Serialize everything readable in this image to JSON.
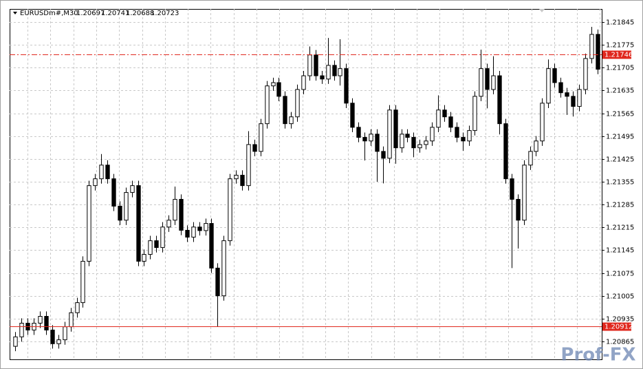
{
  "chart_data": {
    "type": "candlestick",
    "title": "EURUSDm#,M30",
    "quote": [
      1.20697,
      1.20741,
      1.20688,
      1.20723
    ],
    "ylim": [
      1.2081,
      1.21885
    ],
    "yticks": [
      1.21845,
      1.21775,
      1.21705,
      1.21635,
      1.21565,
      1.21495,
      1.21425,
      1.21355,
      1.21285,
      1.21215,
      1.21145,
      1.21075,
      1.21005,
      1.20935,
      1.20865
    ],
    "grid": true,
    "up_color": "#ffffff",
    "down_color": "#000000",
    "open": [
      1.2085,
      1.20879,
      1.20921,
      1.209,
      1.20921,
      1.20942,
      1.209,
      1.20858,
      1.2087,
      1.2091,
      1.20953,
      1.20984,
      1.21111,
      1.21343,
      1.21364,
      1.21406,
      1.21364,
      1.2128,
      1.21237,
      1.21322,
      1.21343,
      1.21111,
      1.21132,
      1.21174,
      1.21153,
      1.21216,
      1.21237,
      1.21301,
      1.21206,
      1.21185,
      1.21216,
      1.21205,
      1.21227,
      1.2109,
      1.21005,
      1.21174,
      1.21364,
      1.21375,
      1.21343,
      1.21469,
      1.21448,
      1.21533,
      1.21649,
      1.21659,
      1.21617,
      1.21533,
      1.21554,
      1.21638,
      1.2168,
      1.21744,
      1.2168,
      1.2167,
      1.21712,
      1.2168,
      1.21702,
      1.21596,
      1.21522,
      1.21491,
      1.2148,
      1.21501,
      1.21448,
      1.21427,
      1.21575,
      1.21459,
      1.21501,
      1.21491,
      1.21459,
      1.21469,
      1.2148,
      1.21522,
      1.21575,
      1.21554,
      1.21522,
      1.21491,
      1.2148,
      1.21512,
      1.21617,
      1.21702,
      1.21638,
      1.2168,
      1.21533,
      1.21364,
      1.21301,
      1.21237,
      1.21406,
      1.21448,
      1.2148,
      1.21596,
      1.21702,
      1.21659,
      1.21628,
      1.21617,
      1.21586,
      1.21638,
      1.21733,
      1.21807
    ],
    "high": [
      1.20894,
      1.20936,
      1.20936,
      1.20936,
      1.20957,
      1.20957,
      1.20915,
      1.20885,
      1.20925,
      1.20968,
      1.20999,
      1.21126,
      1.21358,
      1.21379,
      1.2144,
      1.21421,
      1.21379,
      1.21295,
      1.21337,
      1.21358,
      1.21358,
      1.21147,
      1.21189,
      1.21189,
      1.21231,
      1.21252,
      1.2134,
      1.21316,
      1.21221,
      1.21231,
      1.21231,
      1.21242,
      1.21242,
      1.21105,
      1.21189,
      1.21379,
      1.2139,
      1.2139,
      1.2151,
      1.21484,
      1.21548,
      1.21664,
      1.21674,
      1.21674,
      1.21632,
      1.21569,
      1.21653,
      1.21695,
      1.2177,
      1.21759,
      1.21695,
      1.21796,
      1.21727,
      1.21792,
      1.21717,
      1.21611,
      1.21537,
      1.21506,
      1.21516,
      1.21516,
      1.21463,
      1.2159,
      1.2159,
      1.21516,
      1.21516,
      1.21506,
      1.21484,
      1.21495,
      1.21537,
      1.2162,
      1.2159,
      1.21569,
      1.21537,
      1.21506,
      1.21527,
      1.21632,
      1.2176,
      1.21717,
      1.2174,
      1.21695,
      1.21548,
      1.21379,
      1.21316,
      1.21421,
      1.21463,
      1.21495,
      1.21611,
      1.2173,
      1.21717,
      1.21674,
      1.21643,
      1.21632,
      1.21653,
      1.21748,
      1.2183,
      1.21822
    ],
    "low": [
      1.20835,
      1.20864,
      1.20885,
      1.20885,
      1.20906,
      1.20885,
      1.20843,
      1.20843,
      1.20855,
      1.20895,
      1.20938,
      1.20969,
      1.21096,
      1.21328,
      1.21349,
      1.21349,
      1.21265,
      1.21222,
      1.21222,
      1.21307,
      1.21096,
      1.21096,
      1.21117,
      1.21138,
      1.21138,
      1.21201,
      1.21222,
      1.21191,
      1.2117,
      1.2117,
      1.2119,
      1.2119,
      1.21075,
      1.2091,
      1.2099,
      1.21159,
      1.21349,
      1.21328,
      1.21328,
      1.21433,
      1.21433,
      1.21518,
      1.21634,
      1.21602,
      1.21518,
      1.21518,
      1.21539,
      1.21623,
      1.21665,
      1.21665,
      1.21655,
      1.21655,
      1.21665,
      1.2165,
      1.21581,
      1.21507,
      1.21476,
      1.2142,
      1.21465,
      1.21355,
      1.2135,
      1.21412,
      1.2141,
      1.21444,
      1.21476,
      1.2143,
      1.21444,
      1.21454,
      1.21465,
      1.21507,
      1.21539,
      1.21507,
      1.21476,
      1.2145,
      1.21465,
      1.21497,
      1.21602,
      1.2158,
      1.21623,
      1.215,
      1.21349,
      1.2109,
      1.2115,
      1.21222,
      1.21391,
      1.21433,
      1.21465,
      1.21581,
      1.21644,
      1.21613,
      1.2156,
      1.21555,
      1.21571,
      1.21623,
      1.21718,
      1.21685
    ],
    "close": [
      1.20879,
      1.20921,
      1.209,
      1.20921,
      1.20942,
      1.209,
      1.20858,
      1.2087,
      1.2091,
      1.20953,
      1.20984,
      1.21111,
      1.21343,
      1.21364,
      1.21406,
      1.21364,
      1.2128,
      1.21237,
      1.21322,
      1.21343,
      1.21111,
      1.21132,
      1.21174,
      1.21153,
      1.21216,
      1.21237,
      1.21301,
      1.21206,
      1.21185,
      1.21216,
      1.21205,
      1.21227,
      1.2109,
      1.21005,
      1.21174,
      1.21364,
      1.21375,
      1.21343,
      1.21469,
      1.21448,
      1.21533,
      1.21649,
      1.21659,
      1.21617,
      1.21533,
      1.21554,
      1.21638,
      1.2168,
      1.21744,
      1.2168,
      1.2167,
      1.21712,
      1.2168,
      1.21702,
      1.21596,
      1.21522,
      1.21491,
      1.2148,
      1.21501,
      1.21448,
      1.21427,
      1.21575,
      1.21459,
      1.21501,
      1.21491,
      1.21459,
      1.21469,
      1.2148,
      1.21522,
      1.21575,
      1.21554,
      1.21522,
      1.21491,
      1.2148,
      1.21512,
      1.21617,
      1.21702,
      1.21638,
      1.2168,
      1.21533,
      1.21364,
      1.21301,
      1.21237,
      1.21406,
      1.21448,
      1.2148,
      1.21596,
      1.21702,
      1.21659,
      1.21628,
      1.21617,
      1.21586,
      1.21638,
      1.21733,
      1.21807,
      1.217
    ],
    "levels": [
      {
        "value": 1.21746,
        "color": "#e0281e",
        "style": "dashdot"
      },
      {
        "value": 1.20912,
        "color": "#e0281e",
        "style": "solid"
      }
    ],
    "watermark": "Prof-FX"
  }
}
